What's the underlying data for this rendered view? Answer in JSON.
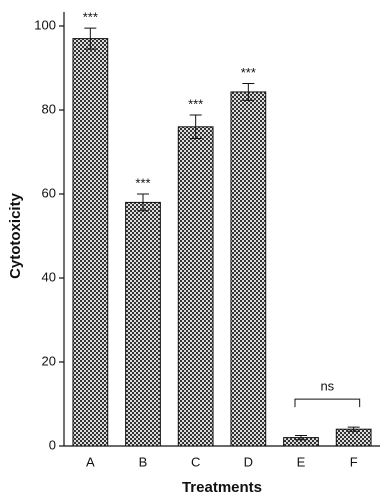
{
  "chart_data": {
    "type": "bar",
    "x_label": "Treatments",
    "y_label": "Cytotoxicity",
    "categories": [
      "A",
      "B",
      "C",
      "D",
      "E",
      "F"
    ],
    "values": [
      97,
      58,
      76,
      84.3,
      2,
      4
    ],
    "errors": [
      2.5,
      2,
      2.8,
      2,
      0.5,
      0.5
    ],
    "significance": [
      "***",
      "***",
      "***",
      "***"
    ],
    "bracket_label": "ns",
    "color": "#333333",
    "ylim": [
      0,
      100
    ],
    "yticks": [
      0,
      20,
      40,
      60,
      80,
      100
    ],
    "grid": false
  }
}
